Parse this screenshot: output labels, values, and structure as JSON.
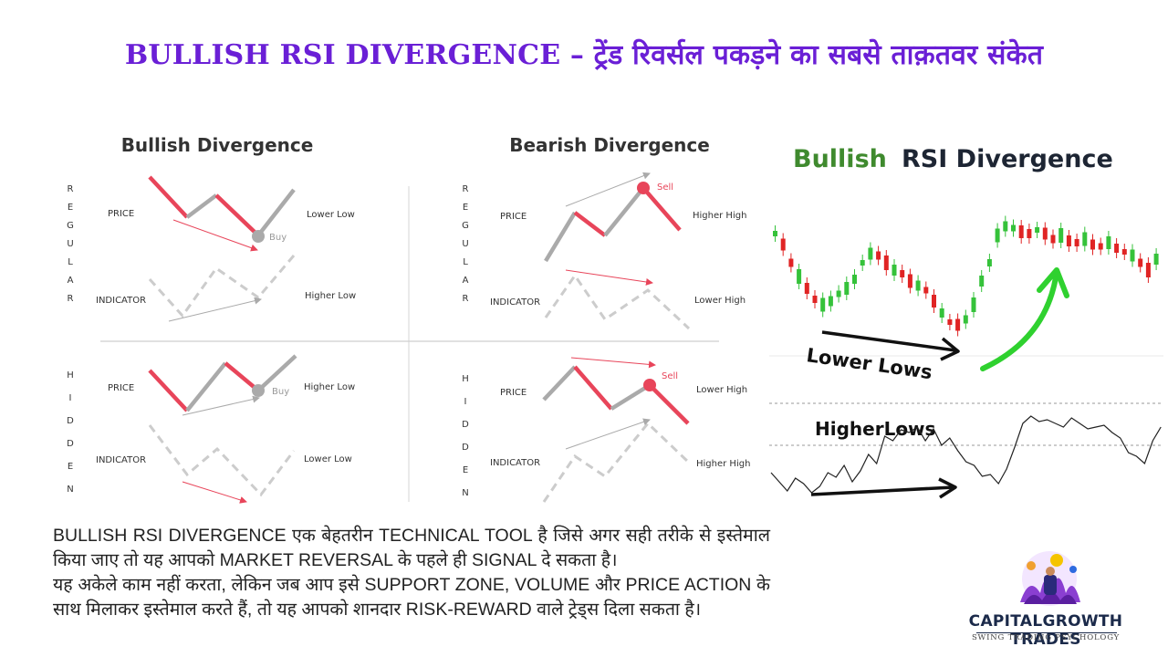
{
  "title": "BULLISH RSI DIVERGENCE – ट्रेंड रिवर्सल पकड़ने का सबसे ताक़तवर संकेत",
  "left_diagram": {
    "bullish_heading": "Bullish Divergence",
    "bearish_heading": "Bearish Divergence",
    "regular_letters": [
      "R",
      "E",
      "G",
      "U",
      "L",
      "A",
      "R"
    ],
    "hidden_letters": [
      "H",
      "I",
      "D",
      "D",
      "E",
      "N"
    ],
    "price_label": "PRICE",
    "indicator_label": "INDICATOR",
    "buy_label": "Buy",
    "sell_label": "Sell",
    "regular_bullish": {
      "price_note": "Lower Low",
      "indicator_note": "Higher Low"
    },
    "regular_bearish": {
      "price_note": "Higher High",
      "indicator_note": "Lower High"
    },
    "hidden_bullish": {
      "price_note": "Higher Low",
      "indicator_note": "Lower Low"
    },
    "hidden_bearish": {
      "price_note": "Lower High",
      "indicator_note": "Higher High"
    },
    "colors": {
      "red": "#e8455a",
      "gray": "#aaaaaa",
      "dashed": "#cccccc"
    }
  },
  "right_chart": {
    "title_green": "Bullish",
    "title_dark": "RSI Divergence",
    "price_annotation": "Lower Lows",
    "rsi_annotation": "HigherLows",
    "colors": {
      "up": "#35c23a",
      "down": "#e02424",
      "arrow": "#2fd12f"
    }
  },
  "body": {
    "para1": "BULLISH RSI DIVERGENCE एक बेहतरीन TECHNICAL TOOL है जिसे अगर सही तरीके से इस्तेमाल किया जाए तो यह आपको MARKET REVERSAL के पहले ही SIGNAL दे सकता है।",
    "para2": " यह अकेले काम नहीं करता, लेकिन जब आप इसे SUPPORT ZONE, VOLUME और PRICE ACTION के साथ मिलाकर इस्तेमाल करते हैं, तो यह आपको शानदार RISK-REWARD वाले ट्रेड्स दिला सकता है।"
  },
  "brand": {
    "name": "CAPITALGROWTH TRADES",
    "tagline": "SWING TRADING PSYCHOLOGY"
  }
}
